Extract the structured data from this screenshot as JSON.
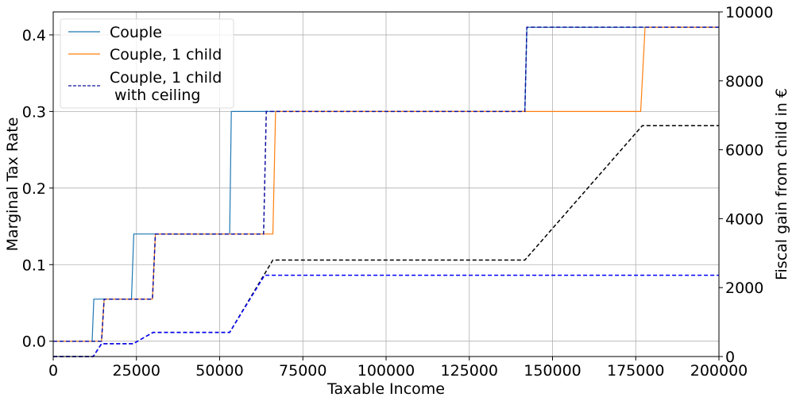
{
  "chart_data": {
    "type": "line",
    "title": "",
    "xlabel": "Taxable Income",
    "ylabel_left": "Marginal Tax Rate",
    "ylabel_right": "Fiscal gain from child in €",
    "xlim": [
      0,
      200000
    ],
    "ylim_left": [
      -0.02,
      0.43
    ],
    "ylim_right": [
      0,
      10000
    ],
    "x_ticks": [
      0,
      25000,
      50000,
      75000,
      100000,
      125000,
      150000,
      175000,
      200000
    ],
    "y_left_ticks": [
      0.0,
      0.1,
      0.2,
      0.3,
      0.4
    ],
    "y_right_ticks": [
      0,
      2000,
      4000,
      6000,
      8000,
      10000
    ],
    "x_tick_labels": [
      "0",
      "25000",
      "50000",
      "75000",
      "100000",
      "125000",
      "150000",
      "175000",
      "200000"
    ],
    "y_left_tick_labels": [
      "0.0",
      "0.1",
      "0.2",
      "0.3",
      "0.4"
    ],
    "y_right_tick_labels": [
      "0",
      "2000",
      "4000",
      "6000",
      "8000",
      "10000"
    ],
    "grid": true,
    "legend_position": "top-left",
    "series": [
      {
        "name": "Couple",
        "axis": "left",
        "color": "#1f77b4",
        "style": "solid",
        "x": [
          0,
          11700,
          12200,
          23500,
          24200,
          53000,
          53500,
          141700,
          142300,
          200000
        ],
        "y": [
          0.0,
          0.0,
          0.055,
          0.055,
          0.14,
          0.14,
          0.3,
          0.3,
          0.41,
          0.41
        ]
      },
      {
        "name": "Couple, 1 child",
        "axis": "left",
        "color": "#ff7f0e",
        "style": "solid",
        "x": [
          0,
          14500,
          15300,
          29800,
          30700,
          66000,
          66800,
          176500,
          177800,
          200000
        ],
        "y": [
          0.0,
          0.0,
          0.055,
          0.055,
          0.14,
          0.14,
          0.3,
          0.3,
          0.41,
          0.41
        ]
      },
      {
        "name": "Couple, 1 child\n with ceiling",
        "axis": "left",
        "color": "#1010a0",
        "style": "dashed",
        "x": [
          0,
          14500,
          15300,
          29800,
          30700,
          63200,
          64000,
          141700,
          142300,
          200000
        ],
        "y": [
          0.0,
          0.0,
          0.055,
          0.055,
          0.14,
          0.14,
          0.3,
          0.3,
          0.41,
          0.41
        ]
      },
      {
        "name": "",
        "axis": "right",
        "color": "#000000",
        "style": "dashed",
        "x": [
          0,
          12000,
          14500,
          24000,
          30000,
          53000,
          66000,
          141700,
          177000,
          200000
        ],
        "y": [
          0,
          0,
          370,
          370,
          700,
          700,
          2800,
          2800,
          6700,
          6700
        ]
      },
      {
        "name": "",
        "axis": "right",
        "color": "#0000ff",
        "style": "dashed",
        "x": [
          0,
          12000,
          14500,
          24000,
          30000,
          53000,
          63500,
          200000
        ],
        "y": [
          0,
          0,
          370,
          370,
          700,
          700,
          2360,
          2360
        ]
      }
    ]
  }
}
